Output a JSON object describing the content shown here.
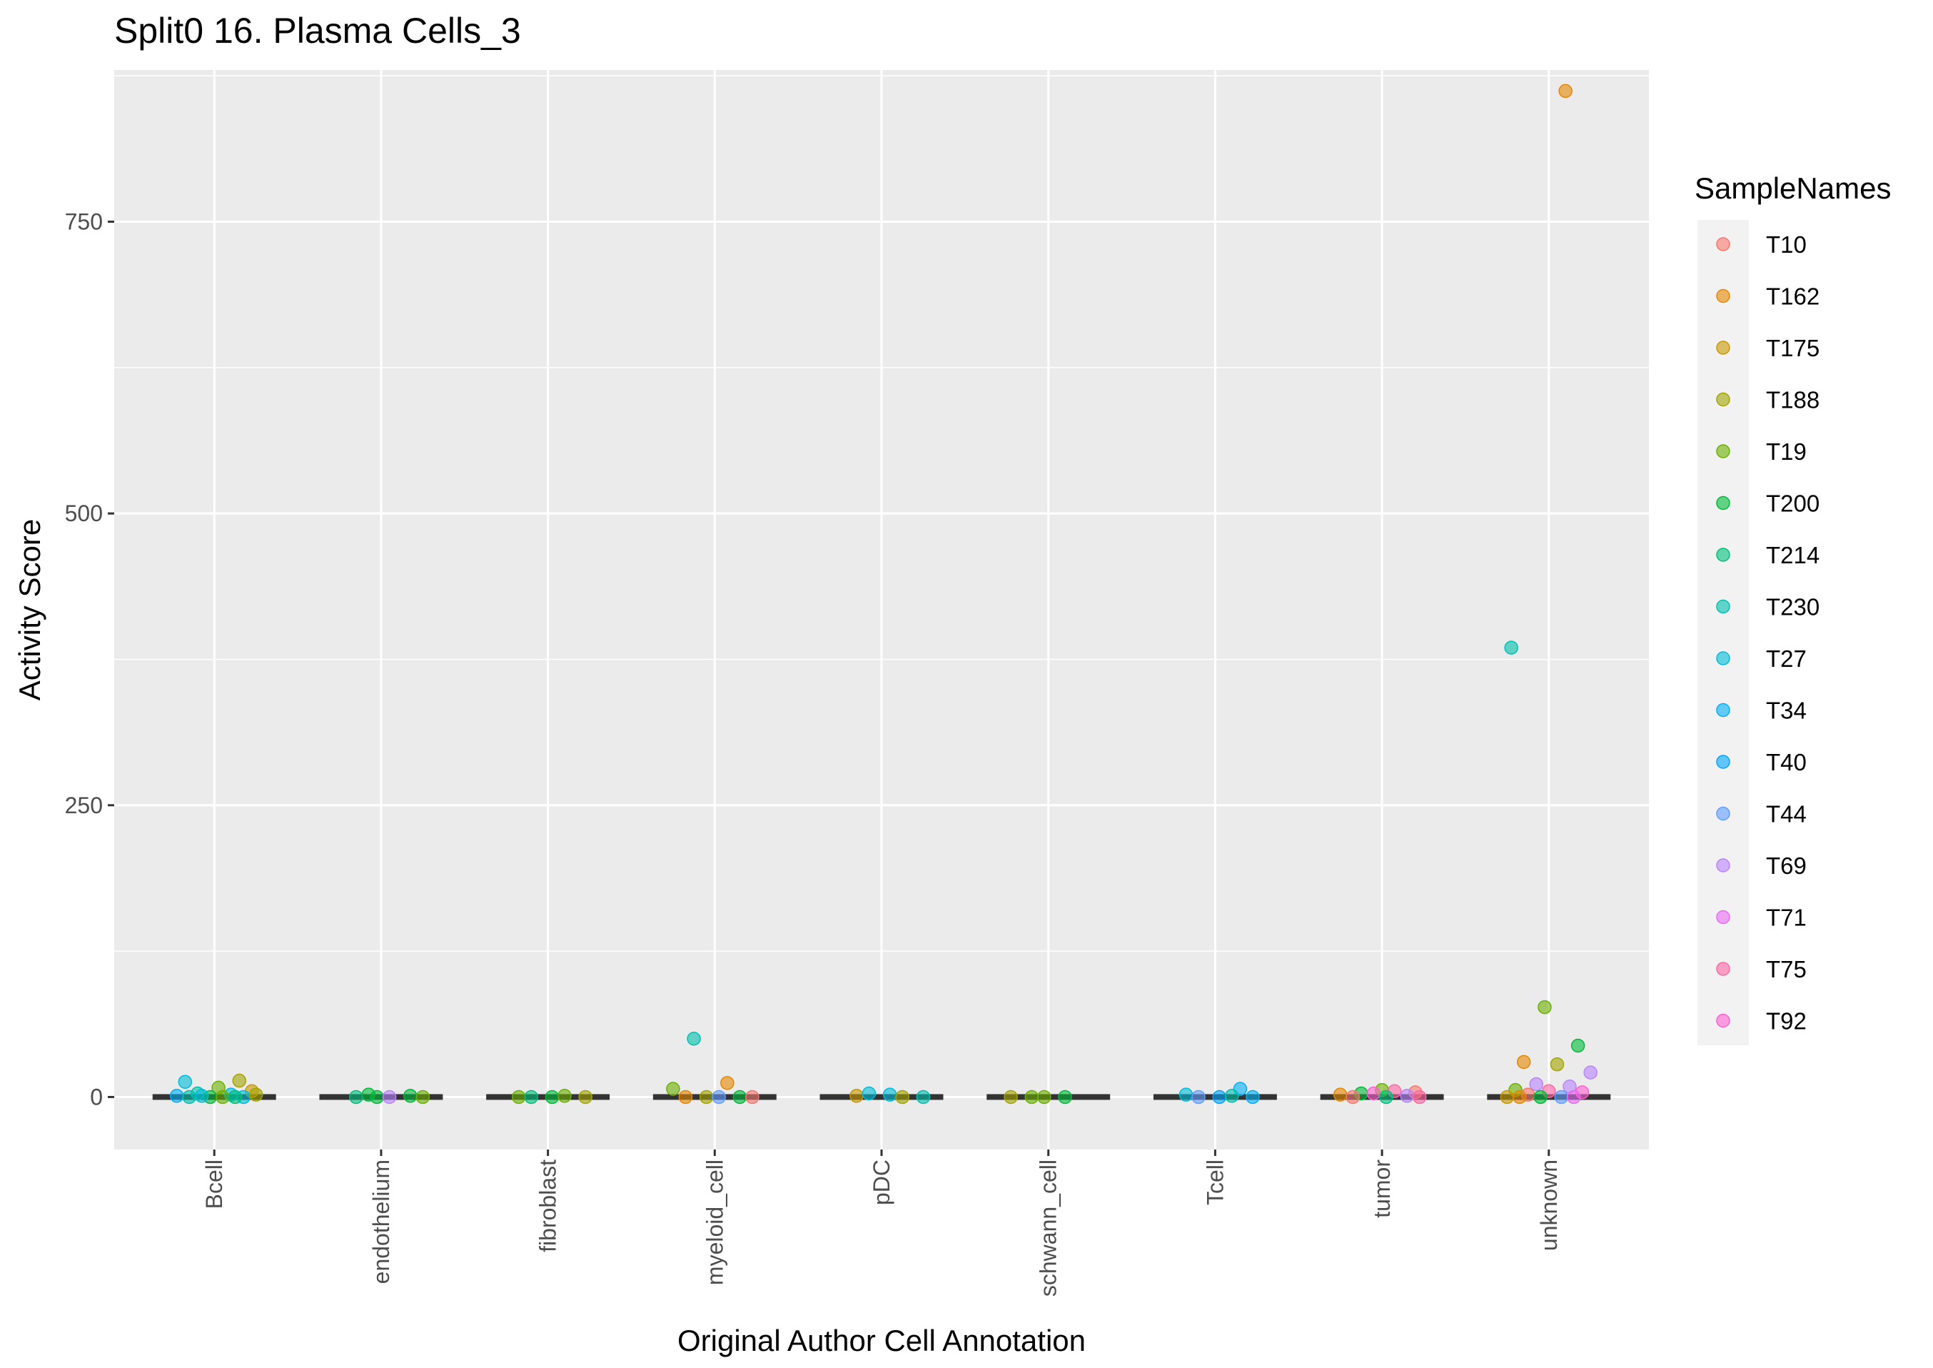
{
  "chart_data": {
    "type": "scatter",
    "title": "Split0 16. Plasma Cells_3",
    "xlabel": "Original Author Cell Annotation",
    "ylabel": "Activity Score",
    "categories": [
      "Bcell",
      "endothelium",
      "fibroblast",
      "myeloid_cell",
      "pDC",
      "schwann_cell",
      "Tcell",
      "tumor",
      "unknown"
    ],
    "ylim": [
      -45,
      880
    ],
    "yticks": [
      0,
      250,
      500,
      750
    ],
    "grid": true,
    "legend": {
      "title": "SampleNames",
      "position": "right",
      "entries": [
        "T10",
        "T162",
        "T175",
        "T188",
        "T19",
        "T200",
        "T214",
        "T230",
        "T27",
        "T34",
        "T40",
        "T44",
        "T69",
        "T71",
        "T75",
        "T92"
      ]
    },
    "colors": {
      "T10": "#F8766D",
      "T162": "#E58700",
      "T175": "#C99800",
      "T188": "#A3A500",
      "T19": "#6BB100",
      "T200": "#00BA38",
      "T214": "#00BF7D",
      "T230": "#00C0AF",
      "T27": "#00BCD8",
      "T34": "#00B0F6",
      "T40": "#00A5FF",
      "T44": "#619CFF",
      "T69": "#B983FF",
      "T71": "#E76BF3",
      "T75": "#FF67A4",
      "T92": "#FD61D1"
    },
    "points": [
      {
        "category": "Bcell",
        "sample": "T188",
        "y": 14
      },
      {
        "category": "Bcell",
        "sample": "T27",
        "y": 13
      },
      {
        "category": "Bcell",
        "sample": "T19",
        "y": 8
      },
      {
        "category": "Bcell",
        "sample": "T175",
        "y": 5
      },
      {
        "category": "Bcell",
        "sample": "T230",
        "y": 3
      },
      {
        "category": "Bcell",
        "sample": "T27",
        "y": 2
      },
      {
        "category": "Bcell",
        "sample": "T34",
        "y": 1
      },
      {
        "category": "Bcell",
        "sample": "T200",
        "y": 0
      },
      {
        "category": "Bcell",
        "sample": "T27",
        "y": 0
      },
      {
        "category": "Bcell",
        "sample": "T230",
        "y": 0
      },
      {
        "category": "Bcell",
        "sample": "T19",
        "y": 0
      },
      {
        "category": "Bcell",
        "sample": "T188",
        "y": 2
      },
      {
        "category": "Bcell",
        "sample": "T27",
        "y": 1
      },
      {
        "category": "Bcell",
        "sample": "T214",
        "y": 0
      },
      {
        "category": "endothelium",
        "sample": "T200",
        "y": 0
      },
      {
        "category": "endothelium",
        "sample": "T200",
        "y": 1
      },
      {
        "category": "endothelium",
        "sample": "T214",
        "y": 0
      },
      {
        "category": "endothelium",
        "sample": "T69",
        "y": 0
      },
      {
        "category": "endothelium",
        "sample": "T19",
        "y": 0
      },
      {
        "category": "endothelium",
        "sample": "T200",
        "y": 2
      },
      {
        "category": "fibroblast",
        "sample": "T19",
        "y": 0
      },
      {
        "category": "fibroblast",
        "sample": "T200",
        "y": 0
      },
      {
        "category": "fibroblast",
        "sample": "T188",
        "y": 0
      },
      {
        "category": "fibroblast",
        "sample": "T214",
        "y": 0
      },
      {
        "category": "fibroblast",
        "sample": "T19",
        "y": 1
      },
      {
        "category": "myeloid_cell",
        "sample": "T230",
        "y": 50
      },
      {
        "category": "myeloid_cell",
        "sample": "T162",
        "y": 12
      },
      {
        "category": "myeloid_cell",
        "sample": "T19",
        "y": 7
      },
      {
        "category": "myeloid_cell",
        "sample": "T188",
        "y": 0
      },
      {
        "category": "myeloid_cell",
        "sample": "T200",
        "y": 0
      },
      {
        "category": "myeloid_cell",
        "sample": "T162",
        "y": 0
      },
      {
        "category": "myeloid_cell",
        "sample": "T44",
        "y": 0
      },
      {
        "category": "myeloid_cell",
        "sample": "T10",
        "y": 0
      },
      {
        "category": "pDC",
        "sample": "T175",
        "y": 1
      },
      {
        "category": "pDC",
        "sample": "T27",
        "y": 2
      },
      {
        "category": "pDC",
        "sample": "T230",
        "y": 0
      },
      {
        "category": "pDC",
        "sample": "T27",
        "y": 3
      },
      {
        "category": "pDC",
        "sample": "T188",
        "y": 0
      },
      {
        "category": "schwann_cell",
        "sample": "T19",
        "y": 0
      },
      {
        "category": "schwann_cell",
        "sample": "T200",
        "y": 0
      },
      {
        "category": "schwann_cell",
        "sample": "T188",
        "y": 0
      },
      {
        "category": "schwann_cell",
        "sample": "T19",
        "y": 0
      },
      {
        "category": "Tcell",
        "sample": "T34",
        "y": 7
      },
      {
        "category": "Tcell",
        "sample": "T27",
        "y": 2
      },
      {
        "category": "Tcell",
        "sample": "T40",
        "y": 0
      },
      {
        "category": "Tcell",
        "sample": "T34",
        "y": 0
      },
      {
        "category": "Tcell",
        "sample": "T44",
        "y": 0
      },
      {
        "category": "Tcell",
        "sample": "T230",
        "y": 1
      },
      {
        "category": "tumor",
        "sample": "T19",
        "y": 6
      },
      {
        "category": "tumor",
        "sample": "T10",
        "y": 4
      },
      {
        "category": "tumor",
        "sample": "T200",
        "y": 3
      },
      {
        "category": "tumor",
        "sample": "T75",
        "y": 5
      },
      {
        "category": "tumor",
        "sample": "T162",
        "y": 2
      },
      {
        "category": "tumor",
        "sample": "T92",
        "y": 3
      },
      {
        "category": "tumor",
        "sample": "T69",
        "y": 1
      },
      {
        "category": "tumor",
        "sample": "T10",
        "y": 0
      },
      {
        "category": "tumor",
        "sample": "T214",
        "y": 0
      },
      {
        "category": "tumor",
        "sample": "T75",
        "y": 0
      },
      {
        "category": "unknown",
        "sample": "T162",
        "y": 862
      },
      {
        "category": "unknown",
        "sample": "T230",
        "y": 385
      },
      {
        "category": "unknown",
        "sample": "T19",
        "y": 77
      },
      {
        "category": "unknown",
        "sample": "T200",
        "y": 44
      },
      {
        "category": "unknown",
        "sample": "T162",
        "y": 30
      },
      {
        "category": "unknown",
        "sample": "T188",
        "y": 28
      },
      {
        "category": "unknown",
        "sample": "T69",
        "y": 21
      },
      {
        "category": "unknown",
        "sample": "T69",
        "y": 11
      },
      {
        "category": "unknown",
        "sample": "T69",
        "y": 9
      },
      {
        "category": "unknown",
        "sample": "T19",
        "y": 6
      },
      {
        "category": "unknown",
        "sample": "T75",
        "y": 5
      },
      {
        "category": "unknown",
        "sample": "T92",
        "y": 4
      },
      {
        "category": "unknown",
        "sample": "T10",
        "y": 2
      },
      {
        "category": "unknown",
        "sample": "T44",
        "y": 0
      },
      {
        "category": "unknown",
        "sample": "T175",
        "y": 0
      },
      {
        "category": "unknown",
        "sample": "T200",
        "y": 0
      },
      {
        "category": "unknown",
        "sample": "T71",
        "y": 0
      },
      {
        "category": "unknown",
        "sample": "T162",
        "y": 0
      }
    ]
  }
}
